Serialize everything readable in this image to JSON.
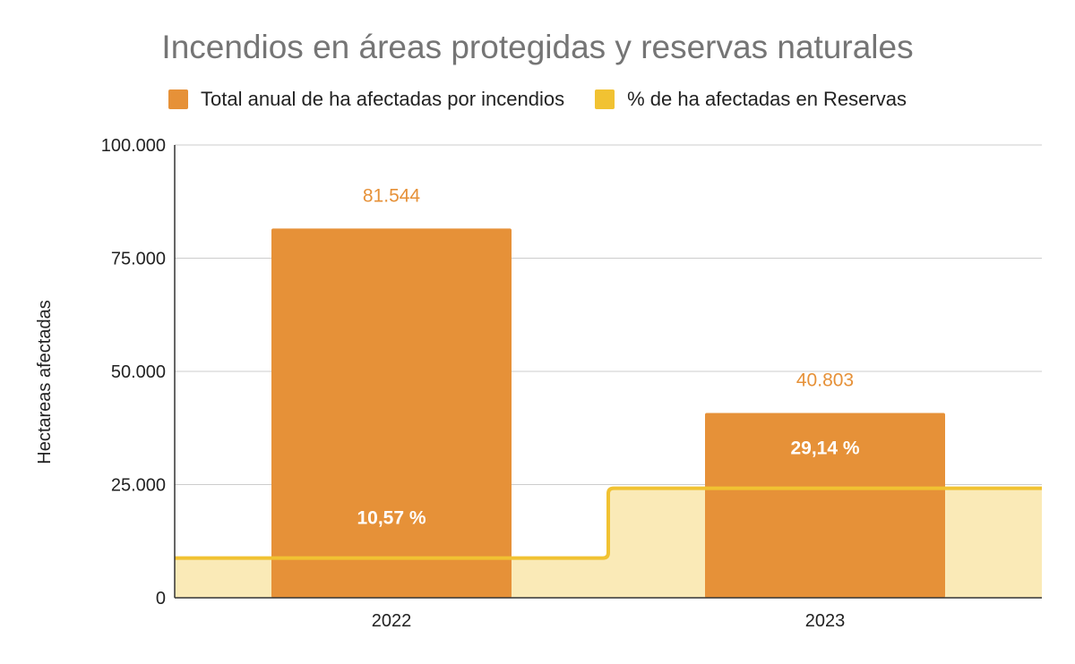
{
  "chart_data": {
    "type": "bar",
    "title": "Incendios en áreas protegidas y reservas naturales",
    "xlabel": "",
    "ylabel": "Hectareas afectadas",
    "ylim": [
      0,
      100000
    ],
    "yticks": [
      0,
      25000,
      50000,
      75000,
      100000
    ],
    "ytick_labels": [
      "0",
      "25.000",
      "50.000",
      "75.000",
      "100.000"
    ],
    "categories": [
      "2022",
      "2023"
    ],
    "grid": true,
    "legend_position": "top",
    "series": [
      {
        "name": "Total anual de ha afectadas por incendios",
        "kind": "bar",
        "color": "#E69138",
        "values": [
          81544,
          40803
        ],
        "value_labels": [
          "81.544",
          "40.803"
        ]
      },
      {
        "name": "% de ha afectadas en Reservas",
        "kind": "stepped-area",
        "color": "#F1C232",
        "values": [
          10.57,
          29.14
        ],
        "value_labels": [
          "10,57 %",
          "29,14 %"
        ]
      }
    ]
  }
}
